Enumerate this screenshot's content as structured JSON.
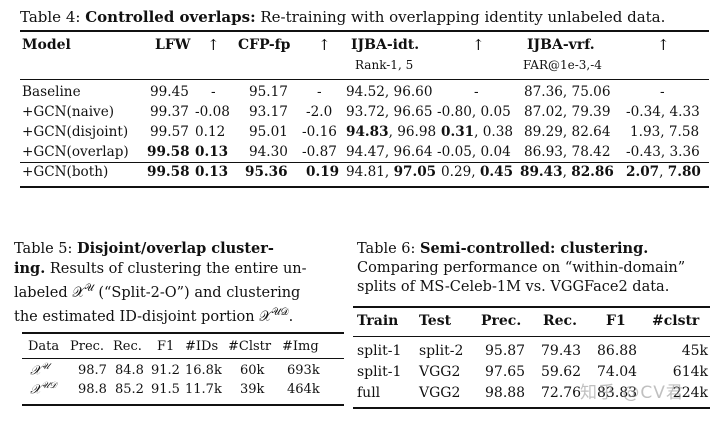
{
  "table4": {
    "caption_label": "Table 4:",
    "caption_title": "Controlled overlaps:",
    "caption_text": "Re-training with overlapping identity unlabeled data.",
    "headers": {
      "model": "Model",
      "lfw": "LFW",
      "arrow1": "↑",
      "cfp": "CFP-fp",
      "arrow2": "↑",
      "ijba_idt": "IJBA-idt.",
      "arrow3": "↑",
      "ijba_vrf": "IJBA-vrf.",
      "arrow4": "↑",
      "ijba_idt_sub": "Rank-1, 5",
      "ijba_vrf_sub": "FAR@1e-3,-4"
    },
    "rows": [
      {
        "model": "Baseline",
        "lfw": "99.45",
        "d1": "-",
        "cfp": "95.17",
        "d2": "-",
        "idt": "94.52, 96.60",
        "d3": "-",
        "vrf": "87.36, 75.06",
        "d4": "-"
      },
      {
        "model": "+GCN(naive)",
        "lfw": "99.37",
        "d1": "-0.08",
        "cfp": "93.17",
        "d2": "-2.0",
        "idt": "93.72, 96.65",
        "d3": "-0.80, 0.05",
        "vrf": "87.02, 79.39",
        "d4": "-0.34, 4.33"
      },
      {
        "model": "+GCN(disjoint)",
        "lfw": "99.57",
        "d1": "0.12",
        "cfp": "95.01",
        "d2": "-0.16",
        "idt_a": "94.83",
        "idt_b": "96.98",
        "d3_a": "0.31",
        "d3_b": "0.38",
        "vrf": "89.29, 82.64",
        "d4": "1.93, 7.58"
      },
      {
        "model": "+GCN(overlap)",
        "lfw": "99.58",
        "d1": "0.13",
        "cfp": "94.30",
        "d2": "-0.87",
        "idt": "94.47, 96.64",
        "d3": "-0.05, 0.04",
        "vrf": "86.93, 78.42",
        "d4": "-0.43, 3.36"
      },
      {
        "model": "+GCN(both)",
        "lfw": "99.58",
        "d1": "0.13",
        "cfp": "95.36",
        "d2": "0.19",
        "idt_a": "94.81",
        "idt_b": "97.05",
        "d3_a": "0.29",
        "d3_b": "0.45",
        "vrf_a": "89.43",
        "vrf_b": "82.86",
        "d4_a": "2.07",
        "d4_b": "7.80"
      }
    ]
  },
  "table5": {
    "caption_label": "Table 5:",
    "caption_title_1": "Disjoint/overlap cluster-",
    "caption_title_2": "ing.",
    "caption_text_1": "Results of clustering the entire un-",
    "caption_text_2": "labeled 𝒳",
    "caption_sup_u": "𝒰",
    "caption_text_3": " (“Split-2-O”) and clustering",
    "caption_text_4": "the estimated ID-disjoint portion 𝒳",
    "caption_sup_ud": "𝒰𝒟",
    "caption_text_5": ".",
    "headers": [
      "Data",
      "Prec.",
      "Rec.",
      "F1",
      "#IDs",
      "#Clstr",
      "#Img"
    ],
    "rows": [
      {
        "data": "𝒳",
        "sup": "𝒰",
        "prec": "98.7",
        "rec": "84.8",
        "f1": "91.2",
        "ids": "16.8k",
        "clstr": "60k",
        "img": "693k"
      },
      {
        "data": "𝒳",
        "sup": "𝒰𝒟",
        "prec": "98.8",
        "rec": "85.2",
        "f1": "91.5",
        "ids": "11.7k",
        "clstr": "39k",
        "img": "464k"
      }
    ]
  },
  "table6": {
    "caption_label": "Table 6:",
    "caption_title": "Semi-controlled: clustering.",
    "caption_text_1": "Comparing performance on “within-domain”",
    "caption_text_2": "splits of MS-Celeb-1M vs. VGGFace2 data.",
    "headers": [
      "Train",
      "Test",
      "Prec.",
      "Rec.",
      "F1",
      "#clstr"
    ],
    "rows": [
      {
        "train": "split-1",
        "test": "split-2",
        "prec": "95.87",
        "rec": "79.43",
        "f1": "86.88",
        "clstr": "45k"
      },
      {
        "train": "split-1",
        "test": "VGG2",
        "prec": "97.65",
        "rec": "59.62",
        "f1": "74.04",
        "clstr": "614k"
      },
      {
        "train": "full",
        "test": "VGG2",
        "prec": "98.88",
        "rec": "72.76",
        "f1": "83.83",
        "clstr": "224k"
      }
    ]
  },
  "watermark": "知乎 @CV君"
}
